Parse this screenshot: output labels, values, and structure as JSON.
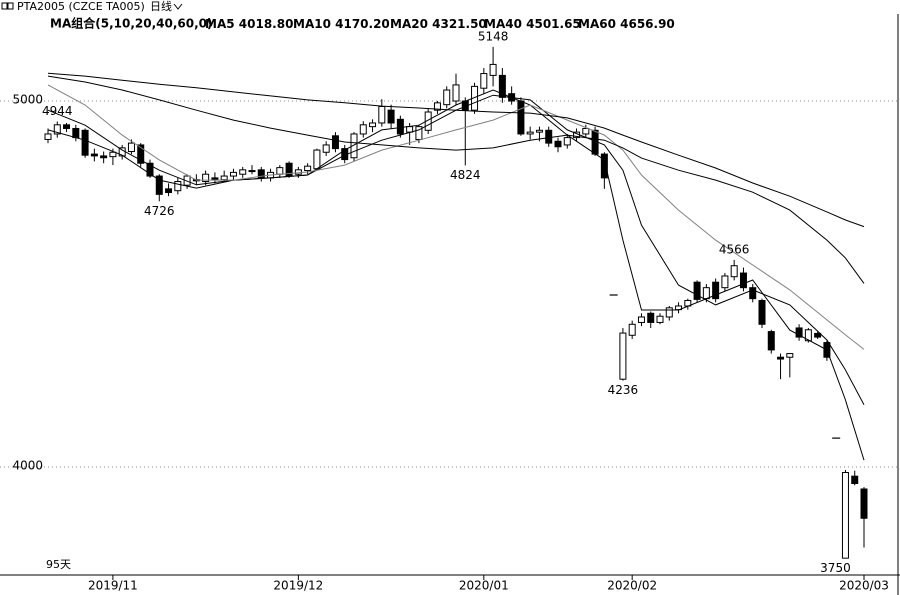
{
  "chart_data": {
    "type": "candlestick",
    "title": "PTA2005 (CZCE TA005)",
    "period": "日线",
    "indicator": "MA组合(5,10,20,40,60,0)",
    "days_label": "95天",
    "categories": [
      null,
      null,
      null,
      null,
      null,
      null,
      null,
      "2019/11",
      null,
      null,
      null,
      null,
      null,
      null,
      null,
      null,
      null,
      null,
      null,
      null,
      null,
      null,
      null,
      null,
      null,
      null,
      null,
      "2019/12",
      null,
      null,
      null,
      null,
      null,
      null,
      null,
      null,
      null,
      null,
      null,
      null,
      null,
      null,
      null,
      null,
      null,
      null,
      null,
      "2020/01",
      null,
      null,
      null,
      null,
      null,
      null,
      null,
      null,
      null,
      null,
      null,
      null,
      null,
      null,
      null,
      "2020/02",
      null,
      null,
      null,
      null,
      null,
      null,
      null,
      null,
      null,
      null,
      null,
      null,
      null,
      null,
      null,
      null,
      null,
      null,
      null,
      null,
      null,
      null,
      null,
      null,
      "2020/03"
    ],
    "open": [
      4895,
      4910,
      4935,
      4925,
      4920,
      4855,
      4850,
      4848,
      4850,
      4862,
      4880,
      4830,
      4795,
      4760,
      4755,
      4770,
      4785,
      4780,
      4790,
      4785,
      4795,
      4800,
      4810,
      4812,
      4790,
      4800,
      4830,
      4800,
      4810,
      4815,
      4860,
      4905,
      4870,
      4845,
      4910,
      4930,
      4940,
      4975,
      4950,
      4915,
      4895,
      4920,
      4975,
      4990,
      5000,
      5000,
      4975,
      5035,
      5070,
      5070,
      5020,
      5000,
      4910,
      4915,
      4920,
      4890,
      4880,
      4900,
      4910,
      4920,
      4855,
      4470,
      4240,
      4360,
      4395,
      4420,
      4395,
      4410,
      4430,
      4440,
      4505,
      4460,
      4505,
      4490,
      4520,
      4530,
      4490,
      4455,
      4370,
      4300,
      4300,
      4380,
      4345,
      4365,
      4340,
      4079,
      3751,
      3975,
      3940
    ],
    "high": [
      4925,
      4944,
      4940,
      4935,
      4925,
      4870,
      4862,
      4870,
      4880,
      4895,
      4885,
      4840,
      4800,
      4775,
      4790,
      4800,
      4800,
      4810,
      4805,
      4810,
      4815,
      4820,
      4825,
      4820,
      4815,
      4825,
      4835,
      4820,
      4830,
      4870,
      4890,
      4915,
      4880,
      4915,
      4945,
      4950,
      5005,
      4990,
      4960,
      4940,
      4935,
      4980,
      5000,
      5040,
      5075,
      5010,
      5050,
      5090,
      5148,
      5090,
      5040,
      5010,
      4930,
      4930,
      4930,
      4900,
      4910,
      4925,
      4935,
      4930,
      4860,
      4470,
      4380,
      4400,
      4420,
      4425,
      4420,
      4440,
      4450,
      4460,
      4510,
      4500,
      4515,
      4530,
      4566,
      4545,
      4500,
      4460,
      4375,
      4310,
      4310,
      4390,
      4380,
      4370,
      4345,
      4079,
      3992,
      3990,
      3945
    ],
    "low": [
      4885,
      4900,
      4915,
      4890,
      4845,
      4835,
      4830,
      4825,
      4840,
      4855,
      4820,
      4790,
      4726,
      4740,
      4745,
      4760,
      4770,
      4770,
      4775,
      4778,
      4785,
      4790,
      4800,
      4780,
      4780,
      4790,
      4790,
      4790,
      4800,
      4810,
      4850,
      4860,
      4830,
      4835,
      4900,
      4915,
      4930,
      4925,
      4900,
      4880,
      4885,
      4910,
      4965,
      4980,
      4990,
      4824,
      4965,
      5020,
      5040,
      4995,
      4990,
      4905,
      4895,
      4890,
      4875,
      4860,
      4870,
      4890,
      4900,
      4850,
      4760,
      4470,
      4236,
      4350,
      4385,
      4380,
      4390,
      4400,
      4420,
      4430,
      4450,
      4450,
      4450,
      4480,
      4510,
      4480,
      4450,
      4380,
      4310,
      4240,
      4245,
      4345,
      4340,
      4350,
      4290,
      4079,
      3750,
      3950,
      3780
    ],
    "close": [
      4910,
      4935,
      4925,
      4900,
      4852,
      4850,
      4845,
      4860,
      4872,
      4885,
      4830,
      4795,
      4745,
      4750,
      4780,
      4795,
      4782,
      4800,
      4785,
      4795,
      4805,
      4812,
      4808,
      4790,
      4805,
      4818,
      4795,
      4812,
      4822,
      4866,
      4880,
      4870,
      4840,
      4910,
      4935,
      4940,
      4985,
      4940,
      4910,
      4930,
      4930,
      4970,
      4995,
      5030,
      5044,
      4975,
      5040,
      5075,
      5100,
      5010,
      5000,
      4910,
      4915,
      4920,
      4885,
      4875,
      4900,
      4915,
      4925,
      4855,
      4790,
      4470,
      4366,
      4390,
      4410,
      4395,
      4412,
      4435,
      4440,
      4455,
      4458,
      4490,
      4460,
      4522,
      4550,
      4490,
      4460,
      4390,
      4320,
      4295,
      4310,
      4355,
      4375,
      4355,
      4300,
      4079,
      3985,
      3955,
      3860
    ],
    "up_color": "#ffffff",
    "down_color": "#000000",
    "ylim": [
      3705,
      5276
    ],
    "yticks": [
      4000,
      5000
    ],
    "grid": true,
    "ma": [
      {
        "name": "MA5",
        "color": "#000000",
        "x": [
          0,
          4,
          8,
          12,
          16,
          20,
          24,
          28,
          32,
          36,
          40,
          44,
          48,
          52,
          56,
          60,
          62,
          64,
          68,
          72,
          76,
          80,
          84,
          86
        ],
        "values": [
          4921,
          4893,
          4852,
          4784,
          4762,
          4784,
          4790,
          4798,
          4866,
          4921,
          4934,
          4989,
          5030,
          4989,
          4907,
          4839,
          4620,
          4429,
          4429,
          4470,
          4511,
          4374,
          4320,
          4183
        ],
        "current": {
          "value": 4018.8,
          "label": "4018.80"
        }
      },
      {
        "name": "MA10",
        "color": "#000000",
        "x": [
          0,
          4,
          8,
          12,
          16,
          20,
          24,
          28,
          32,
          36,
          40,
          44,
          48,
          52,
          56,
          60,
          62,
          64,
          68,
          72,
          76,
          80,
          84,
          86
        ],
        "values": [
          4975,
          4934,
          4866,
          4811,
          4771,
          4784,
          4790,
          4798,
          4852,
          4893,
          4921,
          4975,
          5016,
          5003,
          4921,
          4880,
          4811,
          4661,
          4497,
          4443,
          4484,
          4443,
          4347,
          4265
        ],
        "current": {
          "value": 4170.2,
          "label": "4170.20"
        }
      },
      {
        "name": "MA20",
        "color": "#808080",
        "x": [
          0,
          4,
          8,
          12,
          16,
          20,
          24,
          28,
          32,
          36,
          40,
          44,
          48,
          52,
          56,
          60,
          62,
          64,
          68,
          72,
          76,
          80,
          84,
          86
        ],
        "values": [
          5044,
          4989,
          4907,
          4839,
          4784,
          4784,
          4798,
          4806,
          4825,
          4866,
          4893,
          4921,
          4948,
          4989,
          4948,
          4907,
          4866,
          4798,
          4702,
          4620,
          4552,
          4484,
          4402,
          4361
        ],
        "current": {
          "value": 4321.5,
          "label": "4321.50"
        }
      },
      {
        "name": "MA40",
        "color": "#000000",
        "x": [
          0,
          4,
          8,
          12,
          16,
          20,
          24,
          28,
          32,
          36,
          40,
          44,
          48,
          52,
          56,
          60,
          62,
          64,
          68,
          72,
          76,
          80,
          84,
          86
        ],
        "values": [
          5068,
          5052,
          5030,
          5003,
          4975,
          4948,
          4926,
          4907,
          4888,
          4880,
          4872,
          4866,
          4872,
          4893,
          4907,
          4893,
          4872,
          4844,
          4811,
          4784,
          4751,
          4702,
          4620,
          4571
        ],
        "current": {
          "value": 4501.65,
          "label": "4501.65"
        }
      },
      {
        "name": "MA60",
        "color": "#000000",
        "x": [
          0,
          4,
          8,
          12,
          16,
          20,
          24,
          28,
          32,
          36,
          40,
          44,
          48,
          52,
          56,
          60,
          62,
          64,
          68,
          72,
          76,
          80,
          84,
          86
        ],
        "values": [
          5076,
          5068,
          5057,
          5046,
          5036,
          5025,
          5014,
          5003,
          4995,
          4986,
          4981,
          4975,
          4970,
          4967,
          4954,
          4926,
          4907,
          4888,
          4852,
          4817,
          4776,
          4740,
          4697,
          4675
        ],
        "current": {
          "value": 4656.9,
          "label": "4656.90"
        }
      }
    ]
  }
}
